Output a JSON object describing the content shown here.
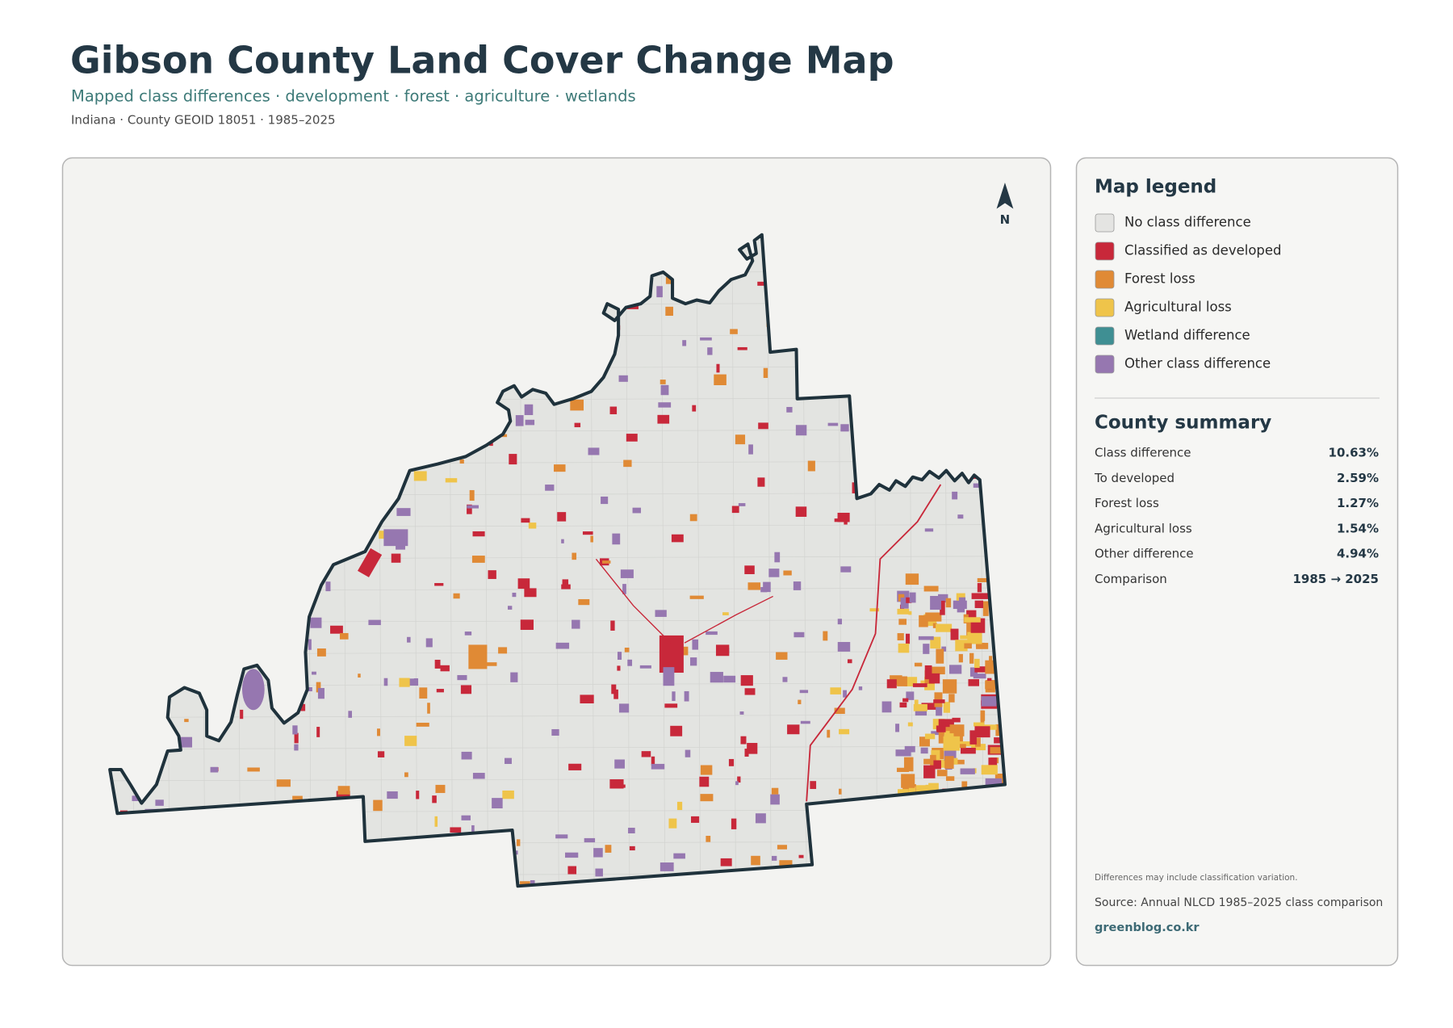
{
  "header": {
    "title": "Gibson County Land Cover Change Map",
    "subtitle": "Mapped class differences · development · forest · agriculture · wetlands",
    "meta": "Indiana · County GEOID 18051 · 1985–2025"
  },
  "map": {
    "north": "N"
  },
  "legend": {
    "title": "Map legend",
    "items": [
      {
        "label": "No class difference",
        "color": "#e4e4e2"
      },
      {
        "label": "Classified as developed",
        "color": "#c8283a"
      },
      {
        "label": "Forest loss",
        "color": "#e08a35"
      },
      {
        "label": "Agricultural loss",
        "color": "#efc44a"
      },
      {
        "label": "Wetland difference",
        "color": "#3f8f93"
      },
      {
        "label": "Other class difference",
        "color": "#9677b0"
      }
    ]
  },
  "summary": {
    "title": "County summary",
    "rows": [
      [
        "Class difference",
        "10.63%"
      ],
      [
        "To developed",
        "2.59%"
      ],
      [
        "Forest loss",
        "1.27%"
      ],
      [
        "Agricultural loss",
        "1.54%"
      ],
      [
        "Other difference",
        "4.94%"
      ],
      [
        "Comparison",
        "1985 → 2025"
      ]
    ]
  },
  "notes": {
    "caveat": "Differences may include classification variation.",
    "source": "Source: Annual NLCD 1985–2025 class comparison",
    "site": "greenblog.co.kr"
  }
}
